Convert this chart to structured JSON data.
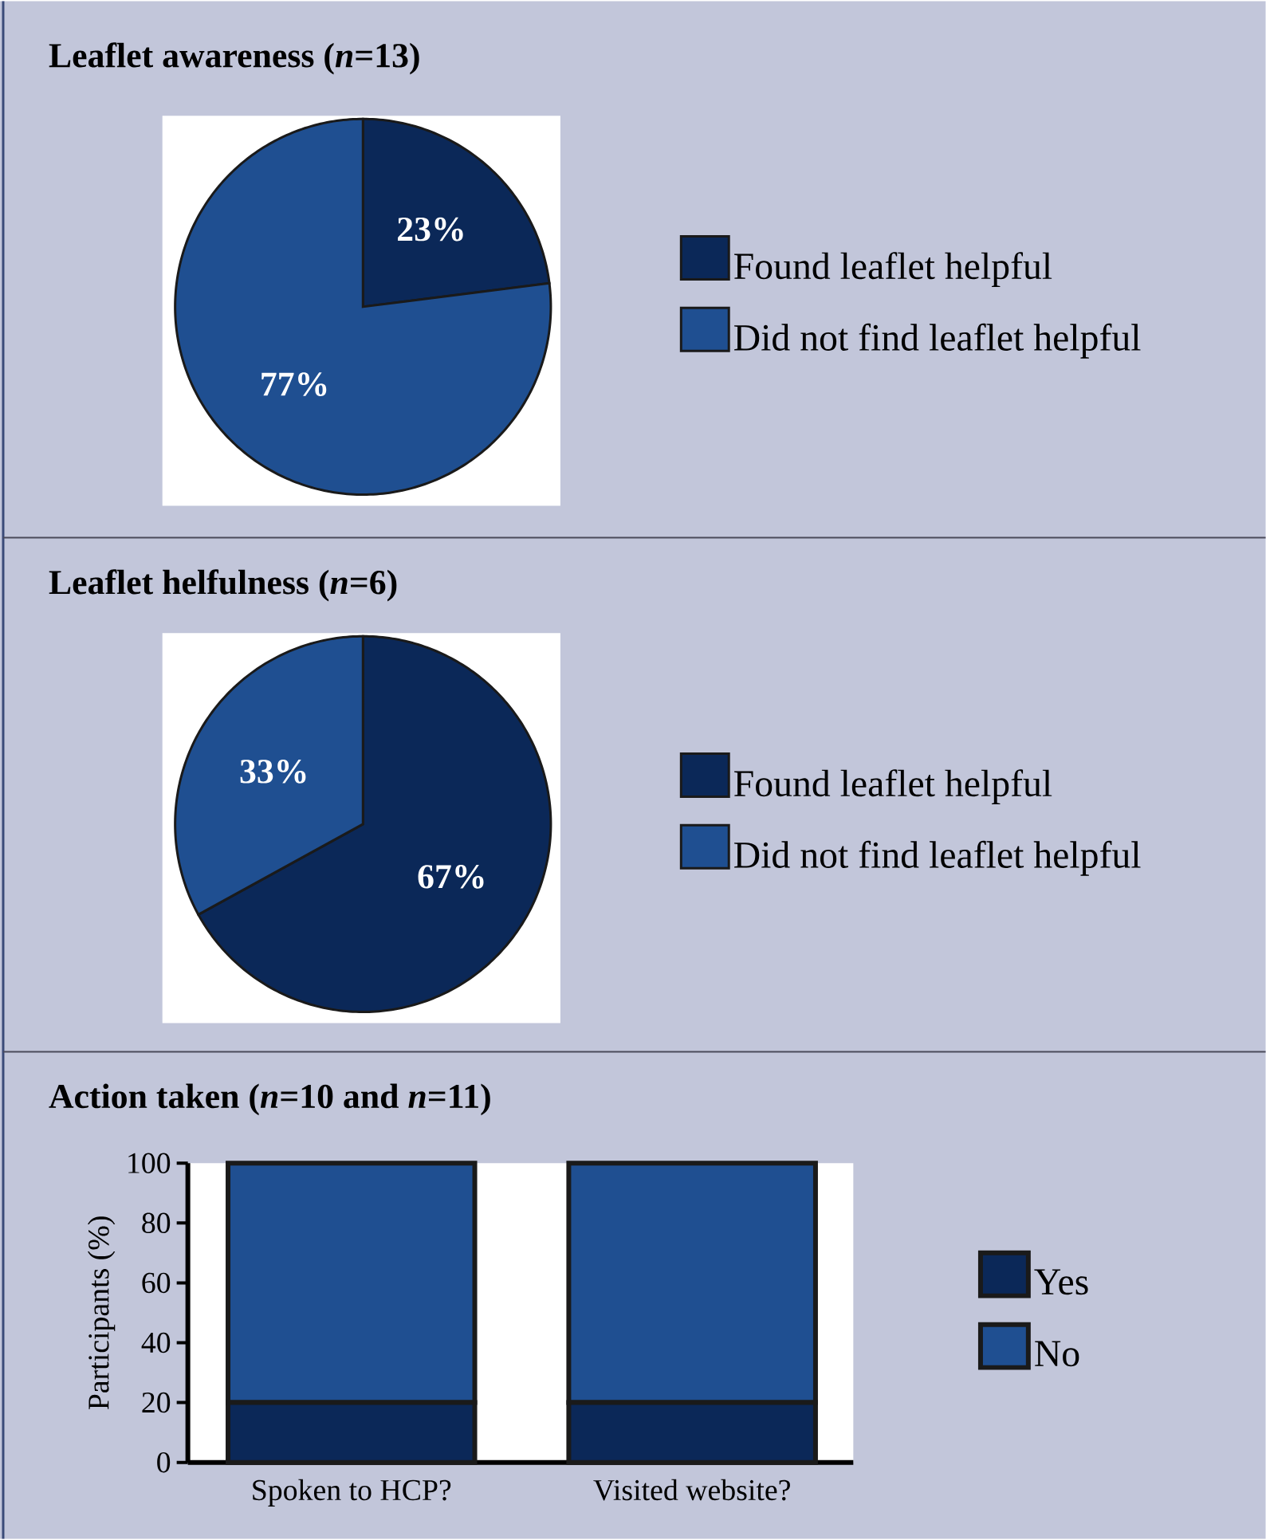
{
  "chart_data": [
    {
      "type": "pie",
      "title": "Leaflet awareness (*n*=13)",
      "categories": [
        "Found leaflet helpful",
        "Did not find leaflet helpful"
      ],
      "values": [
        23,
        77
      ],
      "colors": [
        "#0b2858",
        "#1f4f91"
      ],
      "value_labels": [
        "23%",
        "77%"
      ],
      "legend": "right"
    },
    {
      "type": "pie",
      "title": "Leaflet helfulness (*n*=6)",
      "categories": [
        "Found leaflet helpful",
        "Did not find leaflet helpful"
      ],
      "values": [
        67,
        33
      ],
      "colors": [
        "#0b2858",
        "#1f4f91"
      ],
      "value_labels": [
        "67%",
        "33%"
      ],
      "legend": "right"
    },
    {
      "type": "bar",
      "title": "Action taken (*n*=10 and *n*=11)",
      "ylabel": "Participants (%)",
      "categories": [
        "Spoken to HCP?",
        "Visited website?"
      ],
      "stacked": true,
      "ylim": [
        0,
        100
      ],
      "yticks": [
        0,
        20,
        40,
        60,
        80,
        100
      ],
      "legend": "right",
      "series": [
        {
          "name": "Yes",
          "color": "#0b2858",
          "values": [
            20,
            20
          ]
        },
        {
          "name": "No",
          "color": "#1f4f91",
          "values": [
            80,
            80
          ]
        }
      ]
    }
  ]
}
